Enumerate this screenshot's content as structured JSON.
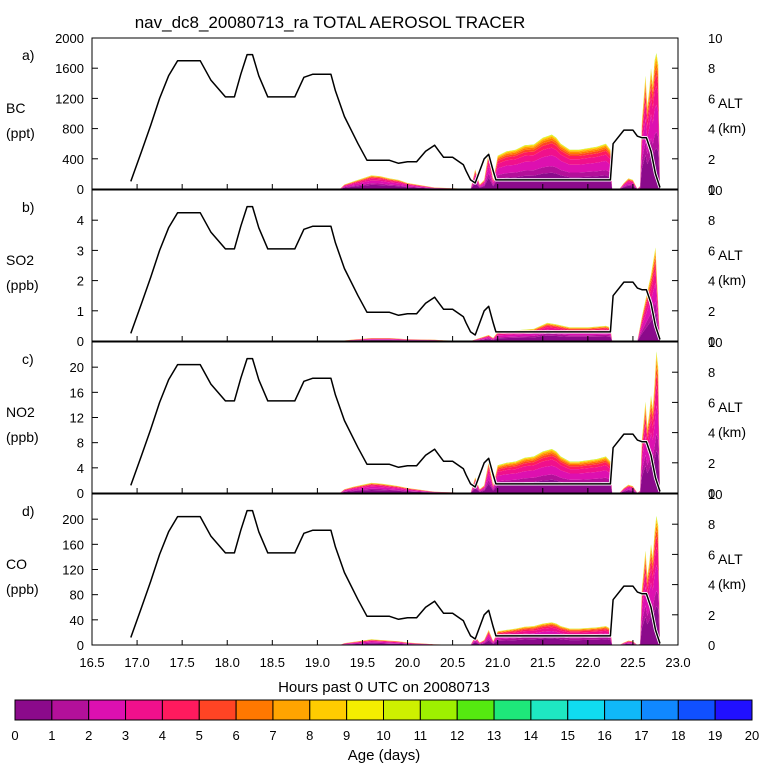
{
  "chart_data": {
    "type": "area",
    "title": "nav_dc8_20080713_ra TOTAL AEROSOL TRACER",
    "xlabel": "Hours past 0 UTC on 20080713",
    "xlim": [
      16.5,
      23.0
    ],
    "xticks": [
      "16.5",
      "17.0",
      "17.5",
      "18.0",
      "18.5",
      "19.0",
      "19.5",
      "20.0",
      "20.5",
      "21.0",
      "21.5",
      "22.0",
      "22.5",
      "23.0"
    ],
    "right_axis": {
      "label_top": "ALT",
      "label_bottom": "(km)",
      "ylim": [
        0,
        10
      ],
      "ticks": [
        "0",
        "2",
        "4",
        "6",
        "8",
        "10"
      ]
    },
    "altitude_km": {
      "x": [
        16.93,
        17.05,
        17.15,
        17.25,
        17.35,
        17.45,
        17.7,
        17.82,
        17.98,
        18.08,
        18.15,
        18.22,
        18.28,
        18.35,
        18.45,
        18.75,
        18.85,
        18.95,
        19.15,
        19.2,
        19.3,
        19.45,
        19.55,
        19.8,
        19.9,
        20.0,
        20.1,
        20.2,
        20.3,
        20.35,
        20.4,
        20.5,
        20.62,
        20.65,
        20.7,
        20.75,
        20.85,
        20.9,
        20.95,
        20.98,
        21.1,
        21.3,
        22.0,
        22.25,
        22.28,
        22.4,
        22.5,
        22.55,
        22.6,
        22.65,
        22.7,
        22.75,
        22.8
      ],
      "values": [
        0.5,
        2.5,
        4.2,
        6.0,
        7.5,
        8.5,
        8.5,
        7.2,
        6.1,
        6.1,
        7.6,
        8.9,
        8.9,
        7.5,
        6.1,
        6.1,
        7.4,
        7.6,
        7.6,
        6.5,
        4.8,
        3.0,
        1.9,
        1.9,
        1.7,
        1.8,
        1.8,
        2.5,
        2.9,
        2.5,
        2.1,
        2.1,
        1.6,
        1.2,
        0.6,
        0.4,
        2.0,
        2.3,
        1.2,
        0.6,
        0.6,
        0.6,
        0.6,
        0.6,
        3.0,
        3.9,
        3.9,
        3.5,
        3.4,
        3.4,
        2.5,
        1.0,
        0.1
      ]
    },
    "panels": [
      {
        "tag": "a)",
        "species": "BC",
        "unit": "(ppt)",
        "ylim": [
          0,
          2000
        ],
        "yticks": [
          "0",
          "400",
          "800",
          "1200",
          "1600",
          "2000"
        ],
        "total": {
          "x": [
            19.25,
            19.3,
            19.4,
            19.5,
            19.6,
            19.7,
            19.8,
            19.9,
            20.0,
            20.1,
            20.2,
            20.3,
            20.7,
            20.75,
            20.8,
            20.85,
            20.9,
            20.95,
            21.0,
            21.1,
            21.2,
            21.3,
            21.4,
            21.5,
            21.55,
            21.6,
            21.65,
            21.7,
            21.8,
            21.9,
            22.0,
            22.1,
            22.2,
            22.25,
            22.27,
            22.35,
            22.4,
            22.45,
            22.5,
            22.55,
            22.58,
            22.6,
            22.62,
            22.64,
            22.66,
            22.68,
            22.7,
            22.72,
            22.74,
            22.76,
            22.78,
            22.8
          ],
          "values": [
            0,
            60,
            100,
            140,
            180,
            170,
            140,
            120,
            80,
            60,
            40,
            20,
            0,
            260,
            60,
            120,
            500,
            120,
            440,
            500,
            520,
            580,
            590,
            680,
            700,
            720,
            680,
            600,
            520,
            520,
            540,
            560,
            600,
            520,
            0,
            0,
            80,
            140,
            120,
            0,
            40,
            900,
            1200,
            1500,
            1100,
            1300,
            1600,
            1400,
            1700,
            1800,
            1650,
            0
          ]
        }
      },
      {
        "tag": "b)",
        "species": "SO2",
        "unit": "(ppb)",
        "ylim": [
          0,
          5
        ],
        "yticks": [
          "0",
          "1",
          "2",
          "3",
          "4"
        ],
        "total": {
          "x": [
            19.25,
            19.4,
            19.6,
            19.8,
            20.0,
            20.3,
            20.4,
            20.7,
            20.85,
            20.9,
            20.95,
            21.0,
            21.2,
            21.4,
            21.55,
            21.65,
            21.8,
            22.0,
            22.2,
            22.25,
            22.27,
            22.55,
            22.6,
            22.65,
            22.7,
            22.75,
            22.8
          ],
          "values": [
            0,
            0.05,
            0.1,
            0.1,
            0.06,
            0.04,
            0.02,
            0,
            0.15,
            0.2,
            0.1,
            0.3,
            0.35,
            0.4,
            0.6,
            0.55,
            0.45,
            0.45,
            0.5,
            0.45,
            0,
            0,
            0.8,
            1.5,
            2.2,
            3.1,
            0
          ]
        }
      },
      {
        "tag": "c)",
        "species": "NO2",
        "unit": "(ppb)",
        "ylim": [
          0,
          24
        ],
        "yticks": [
          "0",
          "4",
          "8",
          "12",
          "16",
          "20"
        ],
        "total": {
          "x": [
            19.25,
            19.3,
            19.4,
            19.5,
            19.6,
            19.7,
            19.8,
            19.9,
            20.0,
            20.1,
            20.2,
            20.3,
            20.7,
            20.75,
            20.8,
            20.85,
            20.9,
            20.95,
            21.0,
            21.1,
            21.2,
            21.3,
            21.4,
            21.5,
            21.55,
            21.6,
            21.65,
            21.7,
            21.8,
            21.9,
            22.0,
            22.1,
            22.2,
            22.25,
            22.27,
            22.35,
            22.4,
            22.45,
            22.5,
            22.55,
            22.58,
            22.6,
            22.62,
            22.64,
            22.66,
            22.68,
            22.7,
            22.72,
            22.74,
            22.76,
            22.78,
            22.8
          ],
          "values": [
            0,
            0.6,
            1.0,
            1.3,
            1.6,
            1.5,
            1.3,
            1.1,
            0.8,
            0.6,
            0.4,
            0.2,
            0,
            2.5,
            0.6,
            1.2,
            5.0,
            1.2,
            4.4,
            4.8,
            5.0,
            5.6,
            5.8,
            6.6,
            6.8,
            7.0,
            6.6,
            5.8,
            5.0,
            5.0,
            5.2,
            5.4,
            5.8,
            5.0,
            0,
            0,
            0.8,
            1.3,
            1.1,
            0,
            0.4,
            8.5,
            11.5,
            14.5,
            10.5,
            12.5,
            15.5,
            13.5,
            17.5,
            22.5,
            20.0,
            0
          ]
        }
      },
      {
        "tag": "d)",
        "species": "CO",
        "unit": "(ppb)",
        "ylim": [
          0,
          240
        ],
        "yticks": [
          "0",
          "40",
          "80",
          "120",
          "160",
          "200"
        ],
        "total": {
          "x": [
            19.25,
            19.3,
            19.4,
            19.5,
            19.6,
            19.7,
            19.8,
            19.9,
            20.0,
            20.1,
            20.2,
            20.3,
            20.7,
            20.75,
            20.8,
            20.85,
            20.9,
            20.95,
            21.0,
            21.1,
            21.2,
            21.3,
            21.4,
            21.5,
            21.55,
            21.6,
            21.65,
            21.7,
            21.8,
            21.9,
            22.0,
            22.1,
            22.2,
            22.25,
            22.27,
            22.35,
            22.4,
            22.45,
            22.5,
            22.55,
            22.58,
            22.6,
            22.62,
            22.64,
            22.66,
            22.68,
            22.7,
            22.72,
            22.74,
            22.76,
            22.78,
            22.8
          ],
          "values": [
            0,
            3,
            5,
            7,
            9,
            8,
            7,
            6,
            4,
            3,
            2,
            1,
            0,
            14,
            4,
            8,
            24,
            6,
            22,
            24,
            26,
            29,
            30,
            34,
            35,
            36,
            34,
            30,
            26,
            26,
            27,
            28,
            30,
            26,
            0,
            0,
            4,
            7,
            6,
            0,
            2,
            90,
            120,
            150,
            110,
            130,
            160,
            140,
            180,
            205,
            190,
            0
          ]
        }
      }
    ],
    "colorbar": {
      "label": "Age (days)",
      "ticks": [
        "0",
        "1",
        "2",
        "3",
        "4",
        "5",
        "6",
        "7",
        "8",
        "9",
        "10",
        "11",
        "12",
        "13",
        "14",
        "15",
        "16",
        "17",
        "18",
        "19",
        "20"
      ],
      "colors": [
        "#8b0a8b",
        "#b3109a",
        "#dd10b0",
        "#f0108c",
        "#ff1a5e",
        "#ff4424",
        "#ff7800",
        "#ffa400",
        "#ffcc00",
        "#f4ee00",
        "#cdf000",
        "#9ef000",
        "#55ea10",
        "#1ee87a",
        "#1ee8c2",
        "#10dcf0",
        "#10b8f8",
        "#1088ff",
        "#1050ff",
        "#2010ff",
        "#7010ff"
      ]
    }
  }
}
